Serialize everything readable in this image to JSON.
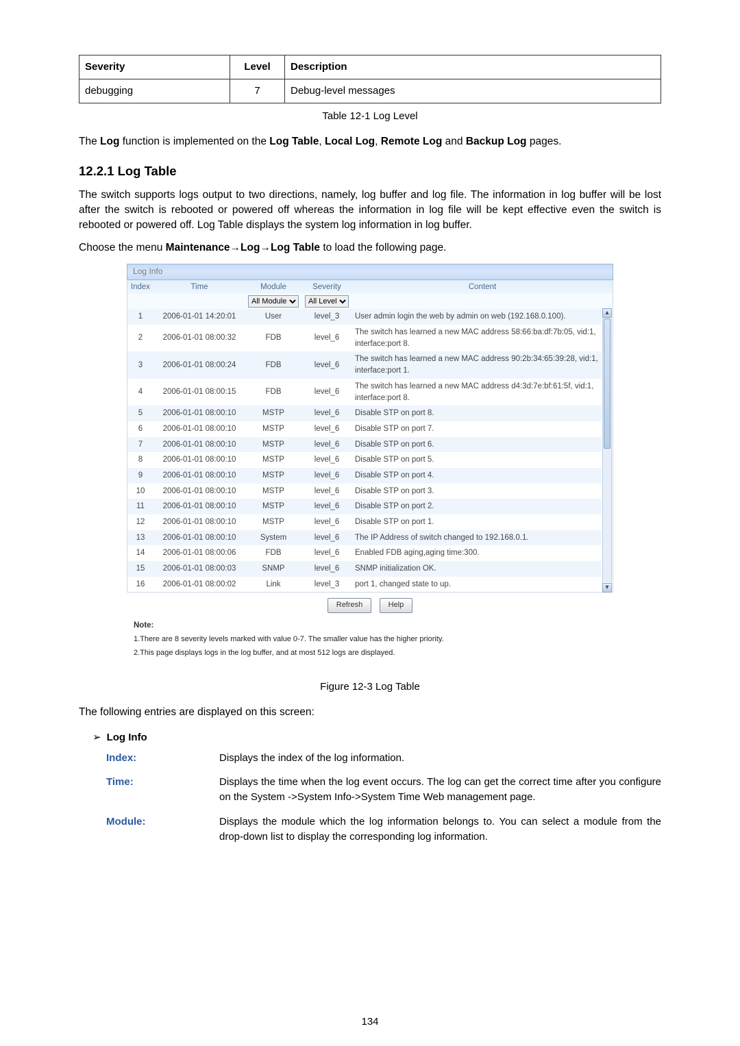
{
  "severity_table": {
    "headers": [
      "Severity",
      "Level",
      "Description"
    ],
    "row": {
      "severity": "debugging",
      "level": "7",
      "description": "Debug-level messages"
    },
    "caption": "Table 12-1 Log Level"
  },
  "para1_a": "The ",
  "para1_b": "Log",
  "para1_c": " function is implemented on the ",
  "para1_d": "Log Table",
  "para1_e": ", ",
  "para1_f": "Local Log",
  "para1_g": ", ",
  "para1_h": "Remote Log",
  "para1_i": " and ",
  "para1_j": "Backup Log",
  "para1_k": " pages.",
  "section_heading": "12.2.1  Log Table",
  "para2": "The switch supports logs output to two directions, namely, log buffer and log file. The information in log buffer will be lost after the switch is rebooted or powered off whereas the information in log file will be kept effective even the switch is rebooted or powered off. Log Table displays the system log information in log buffer.",
  "para3_a": "Choose the menu ",
  "para3_b": "Maintenance→Log→Log Table",
  "para3_c": " to load the following page.",
  "log_info": {
    "panel_title": "Log Info",
    "headers": {
      "index": "Index",
      "time": "Time",
      "module": "Module",
      "severity": "Severity",
      "content": "Content"
    },
    "filters": {
      "module_options": [
        "All Module"
      ],
      "module_selected": "All Module",
      "level_options": [
        "All Level"
      ],
      "level_selected": "All Level"
    },
    "rows": [
      {
        "idx": "1",
        "time": "2006-01-01 14:20:01",
        "module": "User",
        "mod_blue": false,
        "sev": "level_3",
        "content": "User admin login the web by admin on web (192.168.0.100)."
      },
      {
        "idx": "2",
        "time": "2006-01-01 08:00:32",
        "module": "FDB",
        "mod_blue": true,
        "sev": "level_6",
        "content": "The switch has learned a new MAC address 58:66:ba:df:7b:05, vid:1, interface:port 8."
      },
      {
        "idx": "3",
        "time": "2006-01-01 08:00:24",
        "module": "FDB",
        "mod_blue": true,
        "sev": "level_6",
        "content": "The switch has learned a new MAC address 90:2b:34:65:39:28, vid:1, interface:port 1."
      },
      {
        "idx": "4",
        "time": "2006-01-01 08:00:15",
        "module": "FDB",
        "mod_blue": true,
        "sev": "level_6",
        "content": "The switch has learned a new MAC address d4:3d:7e:bf:61:5f, vid:1, interface:port 8."
      },
      {
        "idx": "5",
        "time": "2006-01-01 08:00:10",
        "module": "MSTP",
        "mod_blue": true,
        "sev": "level_6",
        "content": "Disable STP on port 8."
      },
      {
        "idx": "6",
        "time": "2006-01-01 08:00:10",
        "module": "MSTP",
        "mod_blue": true,
        "sev": "level_6",
        "content": "Disable STP on port 7."
      },
      {
        "idx": "7",
        "time": "2006-01-01 08:00:10",
        "module": "MSTP",
        "mod_blue": true,
        "sev": "level_6",
        "content": "Disable STP on port 6."
      },
      {
        "idx": "8",
        "time": "2006-01-01 08:00:10",
        "module": "MSTP",
        "mod_blue": true,
        "sev": "level_6",
        "content": "Disable STP on port 5."
      },
      {
        "idx": "9",
        "time": "2006-01-01 08:00:10",
        "module": "MSTP",
        "mod_blue": true,
        "sev": "level_6",
        "content": "Disable STP on port 4."
      },
      {
        "idx": "10",
        "time": "2006-01-01 08:00:10",
        "module": "MSTP",
        "mod_blue": true,
        "sev": "level_6",
        "content": "Disable STP on port 3."
      },
      {
        "idx": "11",
        "time": "2006-01-01 08:00:10",
        "module": "MSTP",
        "mod_blue": true,
        "sev": "level_6",
        "content": "Disable STP on port 2."
      },
      {
        "idx": "12",
        "time": "2006-01-01 08:00:10",
        "module": "MSTP",
        "mod_blue": true,
        "sev": "level_6",
        "content": "Disable STP on port 1."
      },
      {
        "idx": "13",
        "time": "2006-01-01 08:00:10",
        "module": "System",
        "mod_blue": false,
        "sev": "level_6",
        "content": "The IP Address of switch changed to 192.168.0.1."
      },
      {
        "idx": "14",
        "time": "2006-01-01 08:00:06",
        "module": "FDB",
        "mod_blue": true,
        "sev": "level_6",
        "content": "Enabled FDB aging,aging time:300."
      },
      {
        "idx": "15",
        "time": "2006-01-01 08:00:03",
        "module": "SNMP",
        "mod_blue": true,
        "sev": "level_6",
        "content": "SNMP initialization OK."
      },
      {
        "idx": "16",
        "time": "2006-01-01 08:00:02",
        "module": "Link",
        "mod_blue": false,
        "sev": "level_3",
        "content": "port 1, changed state to up."
      }
    ],
    "buttons": {
      "refresh": "Refresh",
      "help": "Help"
    },
    "note_head": "Note:",
    "note1": "1.There are 8 severity levels marked with value 0-7. The smaller value has the higher priority.",
    "note2": "2.This page displays logs in the log buffer, and at most 512 logs are displayed.",
    "caption": "Figure 12-3 Log Table"
  },
  "para4": "The following entries are displayed on this screen:",
  "bullet_loginfo": "Log Info",
  "defs": {
    "index": {
      "term": "Index:",
      "desc": "Displays the index of the log information."
    },
    "time": {
      "term": "Time:",
      "desc": "Displays the time when the log event occurs. The log can get the correct time after you configure on the System ->System Info->System Time Web management page."
    },
    "module": {
      "term": "Module:",
      "desc": "Displays the module which the log information belongs to. You can select a module from the drop-down list to display the corresponding log information."
    }
  },
  "page_number": "134"
}
